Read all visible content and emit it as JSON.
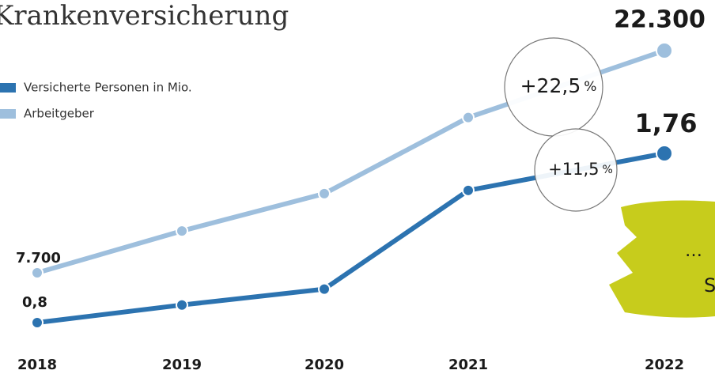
{
  "chart_data": {
    "type": "line",
    "title": "Krankenversicherung",
    "categories": [
      "2018",
      "2019",
      "2020",
      "2021",
      "2022"
    ],
    "series": [
      {
        "name": "Versicherte Personen in Mio.",
        "color": "#2c73b0",
        "values": [
          0.8,
          0.9,
          0.99,
          1.55,
          1.76
        ],
        "value_labels": [
          "0,8",
          null,
          null,
          null,
          "1,76"
        ]
      },
      {
        "name": "Arbeitgeber",
        "color": "#9ebfdd",
        "values": [
          7700,
          10450,
          12900,
          17900,
          22300
        ],
        "value_labels": [
          "7.700",
          null,
          null,
          null,
          "22.300"
        ]
      }
    ],
    "annotations": [
      {
        "text": "+22,5",
        "unit": "%"
      },
      {
        "text": "+11,5",
        "unit": "%"
      }
    ],
    "overlay_text": [
      "…",
      "S"
    ],
    "legend": "top-left",
    "grid": false
  }
}
